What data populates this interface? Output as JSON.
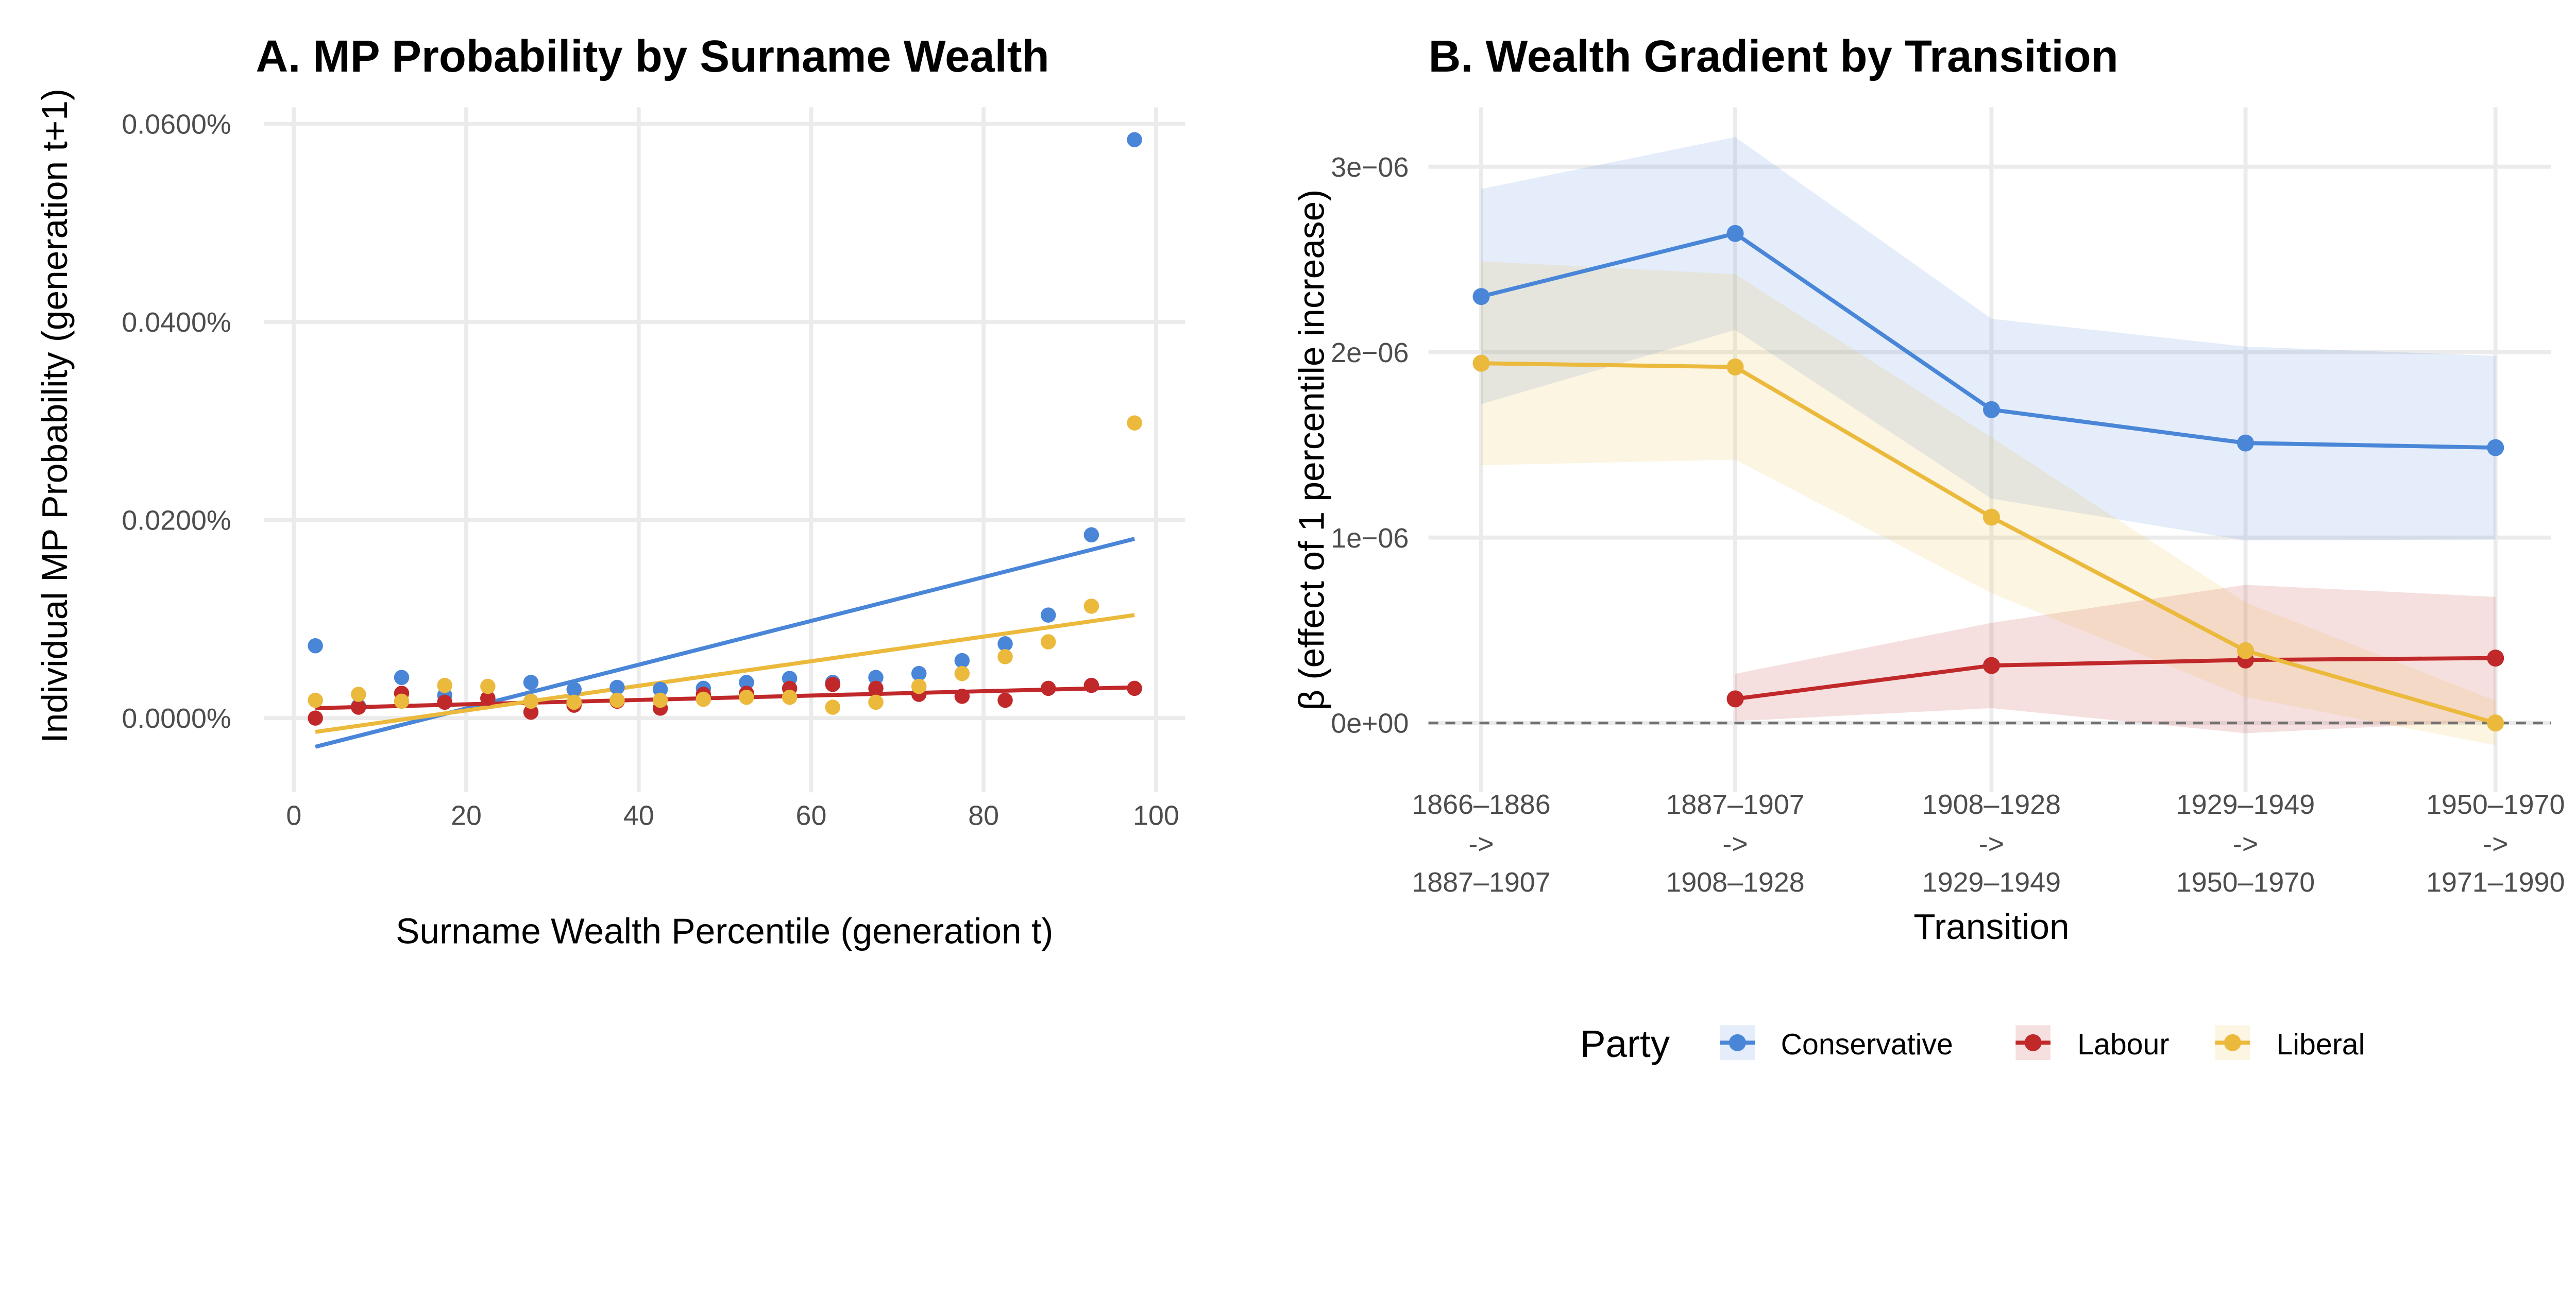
{
  "colors": {
    "Conservative": "#4a86d8",
    "Labour": "#c0282a",
    "Liberal": "#ebb93c"
  },
  "legend": {
    "title": "Party",
    "items": [
      "Conservative",
      "Labour",
      "Liberal"
    ],
    "position": "bottom"
  },
  "chart_data": [
    {
      "type": "scatter",
      "title": "A. MP Probability by Surname Wealth",
      "xlabel": "Surname Wealth Percentile (generation t)",
      "ylabel": "Individual MP Probability (generation t+1)",
      "xlim": [
        -5,
        105
      ],
      "ylim": [
        -0.006,
        0.0614
      ],
      "xticks": [
        0,
        20,
        40,
        60,
        80,
        100
      ],
      "xtick_labels": [
        "0",
        "20",
        "40",
        "60",
        "80",
        "100"
      ],
      "yticks": [
        0,
        0.02,
        0.04,
        0.06
      ],
      "ytick_labels": [
        "0.0000%",
        "0.0200%",
        "0.0400%",
        "0.0600%"
      ],
      "grid": true,
      "x": [
        2.5,
        7.5,
        12.5,
        17.5,
        22.5,
        27.5,
        32.5,
        37.5,
        42.5,
        47.5,
        52.5,
        57.5,
        62.5,
        67.5,
        72.5,
        77.5,
        82.5,
        87.5,
        92.5,
        97.5
      ],
      "series": [
        {
          "name": "Conservative",
          "values": [
            0.0073,
            0.0012,
            0.0041,
            0.0023,
            0.002,
            0.0036,
            0.0029,
            0.0031,
            0.0029,
            0.003,
            0.0036,
            0.004,
            0.0036,
            0.0041,
            0.0045,
            0.0058,
            0.0075,
            0.0104,
            0.0185,
            0.0584
          ],
          "fit": [
            -0.0029,
            0.0181
          ]
        },
        {
          "name": "Labour",
          "values": [
            0.0,
            0.0011,
            0.0025,
            0.0016,
            0.002,
            0.0006,
            0.0013,
            0.0017,
            0.001,
            0.0024,
            0.0025,
            0.003,
            0.0034,
            0.003,
            0.0024,
            0.0022,
            0.0018,
            0.003,
            0.0033,
            0.003
          ],
          "fit": [
            0.001,
            0.0031
          ]
        },
        {
          "name": "Liberal",
          "values": [
            0.0018,
            0.0024,
            0.0017,
            0.0033,
            0.0032,
            0.0017,
            0.0016,
            0.0018,
            0.0018,
            0.0019,
            0.0021,
            0.0021,
            0.0011,
            0.0016,
            0.0032,
            0.0045,
            0.0062,
            0.0077,
            0.0113,
            0.0298
          ],
          "fit": [
            -0.0014,
            0.0104
          ]
        }
      ]
    },
    {
      "type": "line",
      "title": "B. Wealth Gradient by Transition",
      "xlabel": "Transition",
      "ylabel": "β (effect of 1 percentile increase)",
      "ylim": [
        -2.9e-07,
        3.32e-06
      ],
      "yticks": [
        0,
        1e-06,
        2e-06,
        3e-06
      ],
      "ytick_labels": [
        "0e+00",
        "1e−06",
        "2e−06",
        "3e−06"
      ],
      "grid": true,
      "reference_line": {
        "y": 0,
        "style": "dashed"
      },
      "categories": [
        [
          "1866–1886",
          "->",
          "1887–1907"
        ],
        [
          "1887–1907",
          "->",
          "1908–1928"
        ],
        [
          "1908–1928",
          "->",
          "1929–1949"
        ],
        [
          "1929–1949",
          "->",
          "1950–1970"
        ],
        [
          "1950–1970",
          "->",
          "1971–1990"
        ]
      ],
      "series": [
        {
          "name": "Conservative",
          "values": [
            2.3e-06,
            2.64e-06,
            1.69e-06,
            1.51e-06,
            1.485e-06
          ],
          "upper": [
            2.88e-06,
            3.16e-06,
            2.18e-06,
            2.03e-06,
            1.98e-06
          ],
          "lower": [
            1.72e-06,
            2.12e-06,
            1.21e-06,
            9.85e-07,
            9.9e-07
          ]
        },
        {
          "name": "Labour",
          "values": [
            null,
            1.3e-07,
            3.1e-07,
            3.4e-07,
            3.5e-07
          ],
          "upper": [
            null,
            2.65e-07,
            5.4e-07,
            7.45e-07,
            6.8e-07
          ],
          "lower": [
            null,
            1e-08,
            8e-08,
            -5.5e-08,
            1e-08
          ]
        },
        {
          "name": "Liberal",
          "values": [
            1.94e-06,
            1.92e-06,
            1.11e-06,
            3.9e-07,
            0.0
          ],
          "upper": [
            2.49e-06,
            2.42e-06,
            1.54e-06,
            6.5e-07,
            1.2e-07
          ],
          "lower": [
            1.39e-06,
            1.42e-06,
            7e-07,
            1.4e-07,
            -1.2e-07
          ]
        }
      ]
    }
  ]
}
